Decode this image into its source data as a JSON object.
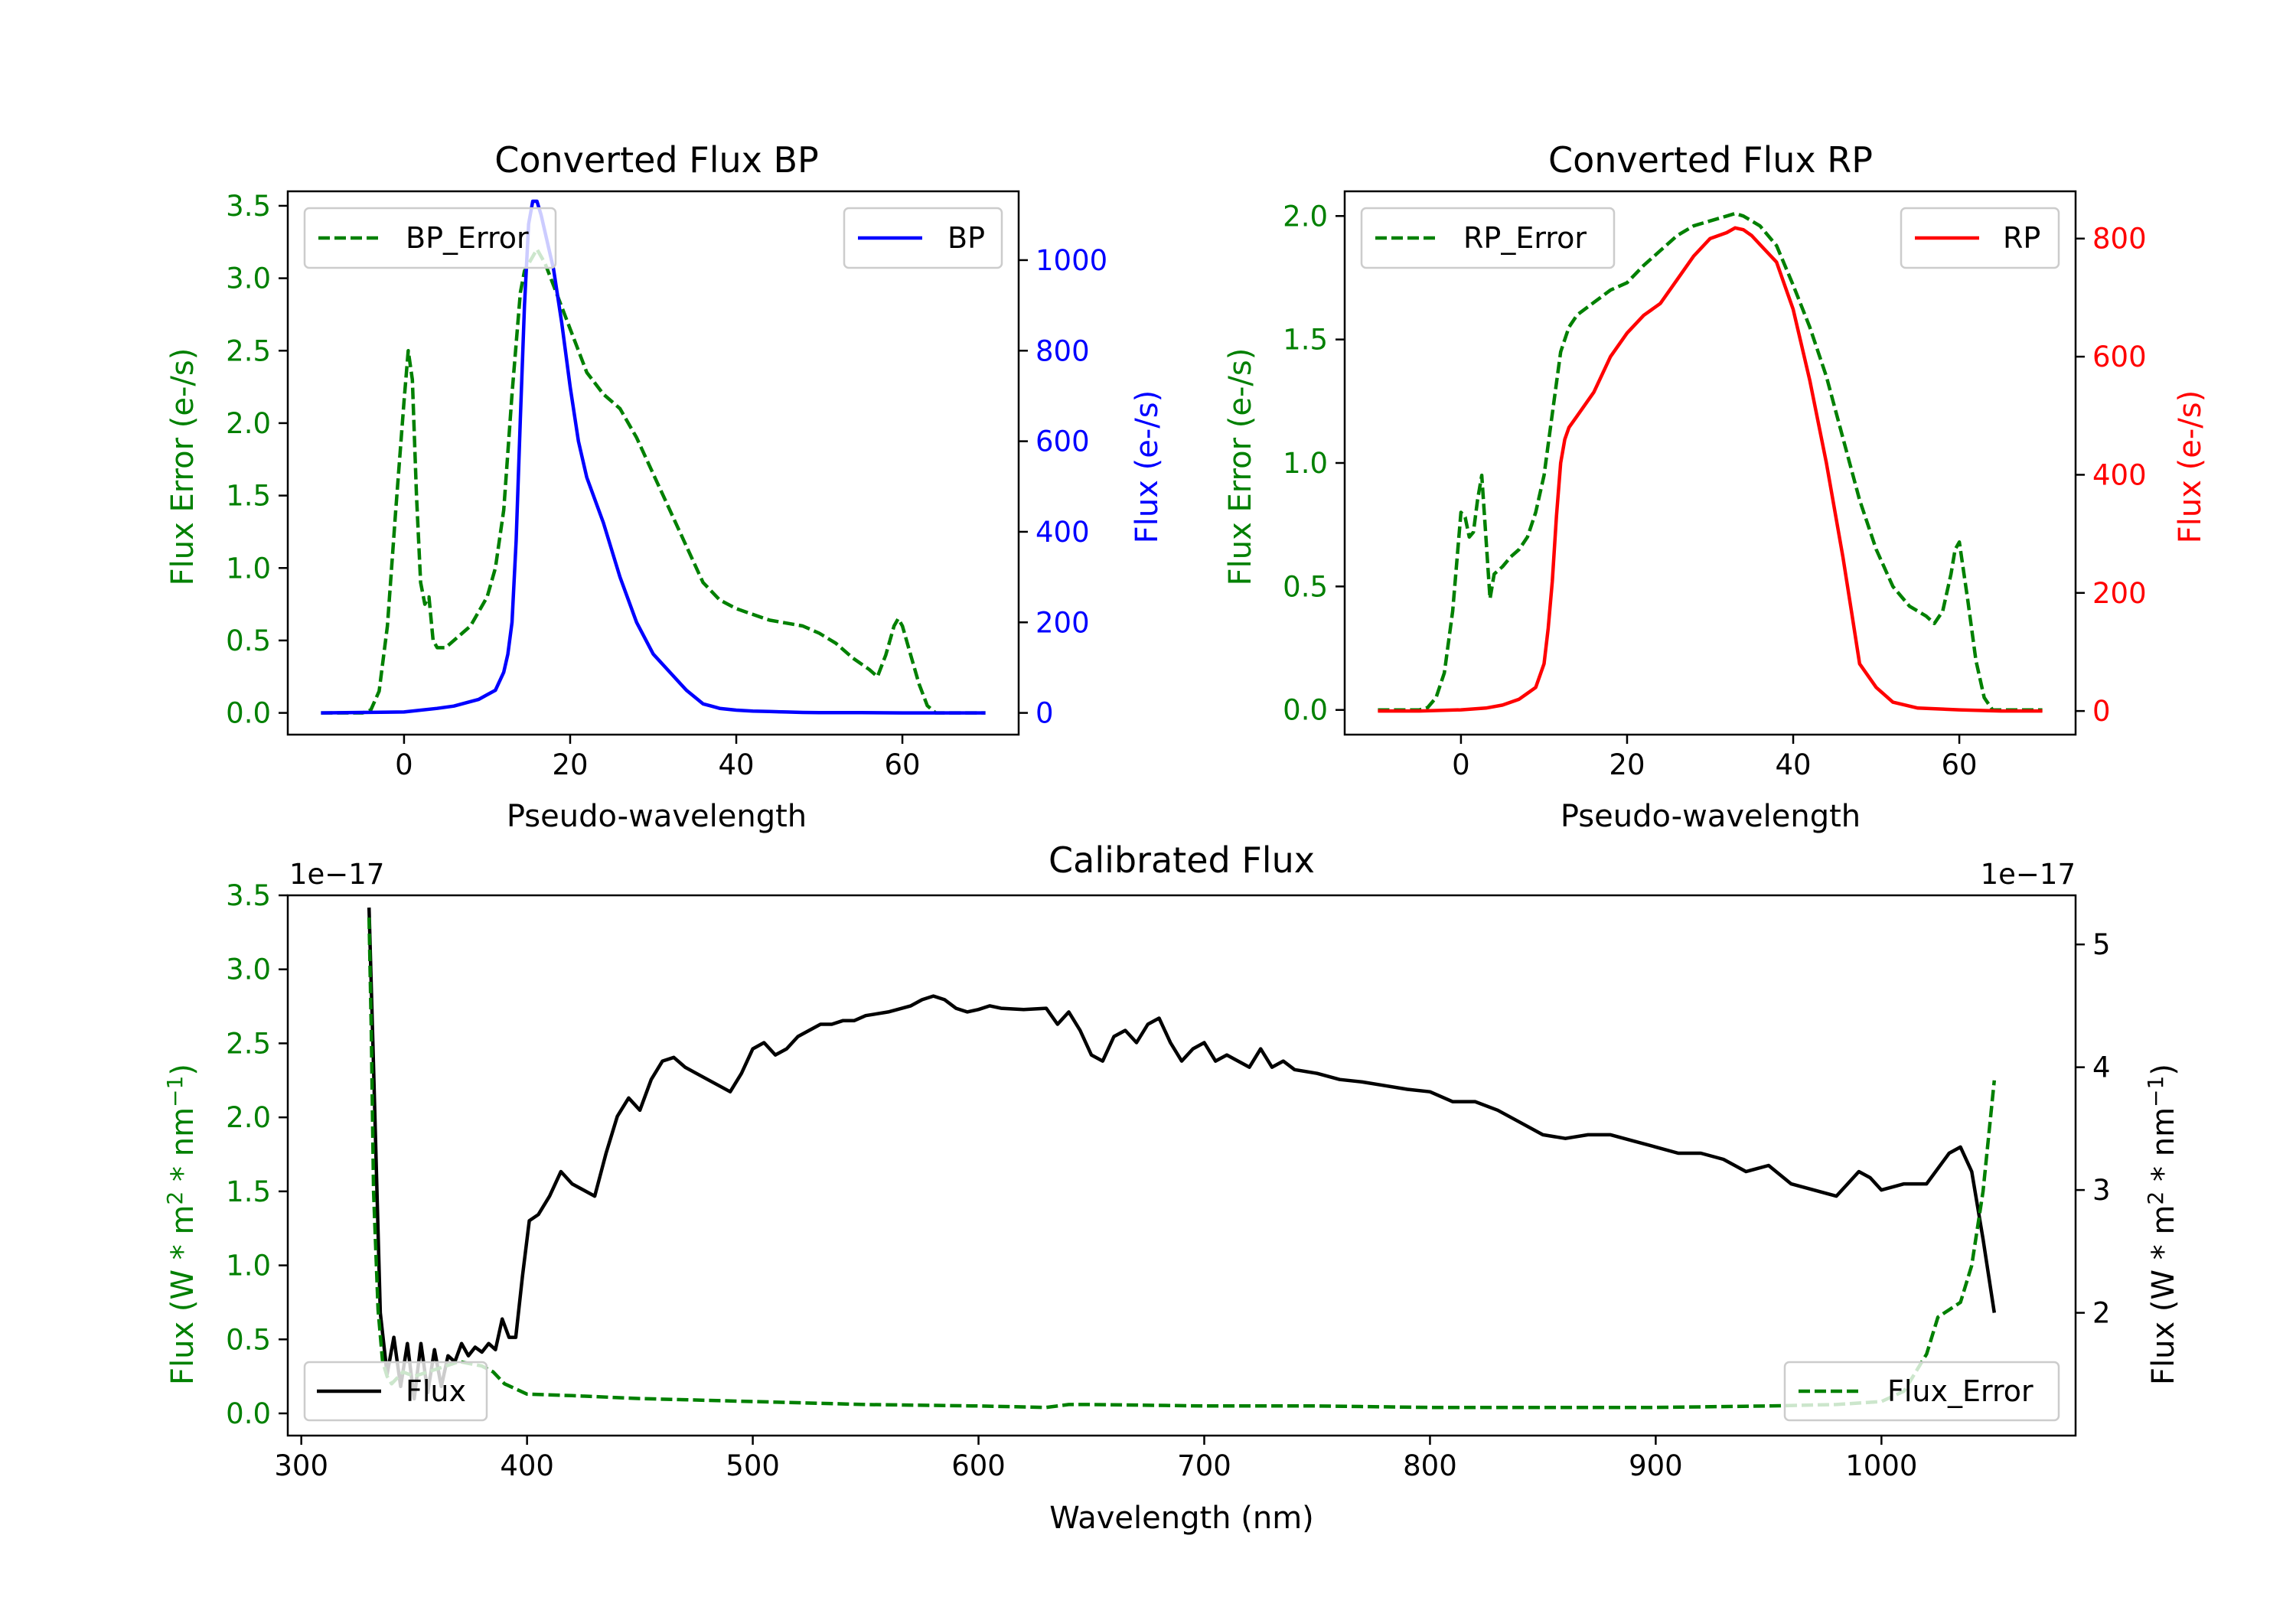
{
  "chart_data": [
    {
      "id": "bp",
      "type": "line",
      "title": "Converted Flux BP",
      "xlabel": "Pseudo-wavelength",
      "ylabel_left": "Flux Error (e-/s)",
      "ylabel_right": "Flux (e-/s)",
      "xlim": [
        -14,
        74
      ],
      "ylim_left": [
        -0.15,
        3.6
      ],
      "ylim_right": [
        -48,
        1152
      ],
      "xticks": [
        0,
        20,
        40,
        60
      ],
      "yticks_left": [
        0.0,
        0.5,
        1.0,
        1.5,
        2.0,
        2.5,
        3.0,
        3.5
      ],
      "yticks_right": [
        0,
        200,
        400,
        600,
        800,
        1000
      ],
      "left_color": "#008000",
      "right_color": "#0000ff",
      "series": [
        {
          "name": "BP_Error",
          "axis": "left",
          "style": "dashed",
          "color": "#008000",
          "x": [
            -10,
            -5,
            -4,
            -3,
            -2,
            -1,
            0,
            0.5,
            1,
            1.5,
            2,
            2.5,
            3,
            3.5,
            4,
            5,
            6,
            7,
            8,
            9,
            10,
            11,
            12,
            13,
            14,
            14.5,
            15,
            16,
            17,
            18,
            20,
            22,
            24,
            26,
            28,
            30,
            32,
            34,
            36,
            38,
            40,
            42,
            44,
            46,
            48,
            50,
            52,
            54,
            56,
            57,
            58,
            59,
            59.5,
            60,
            61,
            62,
            63,
            64,
            66,
            70
          ],
          "values": [
            0,
            0,
            0.02,
            0.15,
            0.6,
            1.4,
            2.15,
            2.5,
            2.3,
            1.5,
            0.9,
            0.75,
            0.8,
            0.5,
            0.45,
            0.45,
            0.5,
            0.55,
            0.6,
            0.7,
            0.8,
            1.0,
            1.4,
            2.2,
            2.9,
            3.05,
            3.1,
            3.2,
            3.1,
            2.95,
            2.65,
            2.35,
            2.2,
            2.1,
            1.9,
            1.65,
            1.4,
            1.15,
            0.9,
            0.78,
            0.72,
            0.68,
            0.64,
            0.62,
            0.6,
            0.55,
            0.48,
            0.38,
            0.3,
            0.25,
            0.4,
            0.6,
            0.65,
            0.6,
            0.4,
            0.2,
            0.05,
            0,
            0,
            0
          ]
        },
        {
          "name": "BP",
          "axis": "right",
          "style": "solid",
          "color": "#0000ff",
          "x": [
            -10,
            -5,
            0,
            4,
            6,
            8,
            9,
            10,
            11,
            12,
            12.5,
            13,
            13.5,
            14,
            14.5,
            15,
            15.5,
            16,
            16.5,
            17,
            18,
            19,
            20,
            21,
            22,
            24,
            26,
            28,
            30,
            32,
            34,
            36,
            37,
            38,
            40,
            42,
            44,
            46,
            48,
            50,
            55,
            60,
            65,
            70
          ],
          "values": [
            0,
            1,
            2,
            10,
            15,
            25,
            30,
            40,
            50,
            90,
            130,
            200,
            380,
            650,
            900,
            1080,
            1130,
            1130,
            1100,
            1060,
            980,
            860,
            720,
            600,
            520,
            420,
            300,
            200,
            130,
            90,
            50,
            20,
            15,
            10,
            6,
            4,
            3,
            2,
            1,
            0.5,
            0.5,
            0,
            0,
            0
          ]
        }
      ],
      "legend": [
        {
          "label": "BP_Error",
          "position": "upper left"
        },
        {
          "label": "BP",
          "position": "upper right"
        }
      ]
    },
    {
      "id": "rp",
      "type": "line",
      "title": "Converted Flux RP",
      "xlabel": "Pseudo-wavelength",
      "ylabel_left": "Flux Error (e-/s)",
      "ylabel_right": "Flux (e-/s)",
      "xlim": [
        -14,
        74
      ],
      "ylim_left": [
        -0.1,
        2.1
      ],
      "ylim_right": [
        -40,
        880
      ],
      "xticks": [
        0,
        20,
        40,
        60
      ],
      "yticks_left": [
        0.0,
        0.5,
        1.0,
        1.5,
        2.0
      ],
      "yticks_right": [
        0,
        200,
        400,
        600,
        800
      ],
      "left_color": "#008000",
      "right_color": "#ff0000",
      "series": [
        {
          "name": "RP_Error",
          "axis": "left",
          "style": "dashed",
          "color": "#008000",
          "x": [
            -10,
            -5,
            -4,
            -3,
            -2,
            -1,
            -0.5,
            0,
            0.5,
            1,
            1.5,
            2,
            2.5,
            3,
            3.5,
            4,
            5,
            6,
            7,
            8,
            9,
            10,
            11,
            12,
            13,
            14,
            16,
            18,
            20,
            22,
            24,
            26,
            28,
            30,
            32,
            33,
            34,
            35,
            36,
            38,
            40,
            42,
            44,
            46,
            48,
            50,
            52,
            54,
            55,
            56,
            57,
            58,
            59,
            59.5,
            60,
            61,
            62,
            63,
            64,
            66,
            70
          ],
          "values": [
            0,
            0,
            0.01,
            0.05,
            0.15,
            0.4,
            0.6,
            0.8,
            0.78,
            0.7,
            0.72,
            0.85,
            0.95,
            0.7,
            0.45,
            0.55,
            0.58,
            0.62,
            0.65,
            0.7,
            0.8,
            0.95,
            1.2,
            1.45,
            1.55,
            1.6,
            1.65,
            1.7,
            1.73,
            1.8,
            1.86,
            1.92,
            1.96,
            1.98,
            2.0,
            2.01,
            2.0,
            1.98,
            1.96,
            1.88,
            1.72,
            1.55,
            1.35,
            1.1,
            0.85,
            0.65,
            0.5,
            0.42,
            0.4,
            0.38,
            0.35,
            0.4,
            0.55,
            0.65,
            0.68,
            0.45,
            0.2,
            0.05,
            0,
            0,
            0
          ]
        },
        {
          "name": "RP",
          "axis": "right",
          "style": "solid",
          "color": "#ff0000",
          "x": [
            -10,
            -5,
            0,
            3,
            5,
            7,
            8,
            9,
            10,
            10.5,
            11,
            11.5,
            12,
            12.5,
            13,
            14,
            16,
            18,
            20,
            22,
            24,
            26,
            28,
            30,
            32,
            33,
            34,
            35,
            36,
            38,
            40,
            42,
            44,
            46,
            47,
            48,
            50,
            52,
            55,
            60,
            65,
            70
          ],
          "values": [
            0,
            0,
            2,
            5,
            10,
            20,
            30,
            40,
            80,
            140,
            220,
            330,
            420,
            460,
            480,
            500,
            540,
            600,
            640,
            670,
            690,
            730,
            770,
            800,
            810,
            818,
            815,
            805,
            790,
            760,
            680,
            560,
            420,
            260,
            170,
            80,
            40,
            15,
            5,
            2,
            0,
            0
          ]
        }
      ],
      "legend": [
        {
          "label": "RP_Error",
          "position": "upper left"
        },
        {
          "label": "RP",
          "position": "upper right"
        }
      ]
    },
    {
      "id": "cal",
      "type": "line",
      "title": "Calibrated Flux",
      "xlabel": "Wavelength (nm)",
      "ylabel_left": "Flux (W * m",
      "ylabel_right": "Flux (W * m",
      "ylabel_mid": " * nm",
      "ylabel_end": ")",
      "ylabel_sup_2": "2",
      "ylabel_sup_minus1": "−1",
      "offset_left": "1e−17",
      "offset_right": "1e−17",
      "xlim": [
        294,
        1086
      ],
      "ylim_left": [
        -0.15,
        3.5
      ],
      "ylim_right": [
        1.0,
        5.4
      ],
      "xticks": [
        300,
        400,
        500,
        600,
        700,
        800,
        900,
        1000
      ],
      "yticks_left": [
        0.0,
        0.5,
        1.0,
        1.5,
        2.0,
        2.5,
        3.0,
        3.5
      ],
      "yticks_right": [
        2,
        3,
        4,
        5
      ],
      "left_color": "#008000",
      "right_color": "#000000",
      "series": [
        {
          "name": "Flux",
          "axis": "right",
          "style": "solid",
          "color": "#000000",
          "x": [
            330,
            332,
            335,
            338,
            341,
            344,
            347,
            350,
            353,
            356,
            359,
            362,
            365,
            368,
            371,
            374,
            377,
            380,
            383,
            386,
            389,
            392,
            395,
            398,
            401,
            405,
            410,
            415,
            420,
            425,
            430,
            435,
            440,
            445,
            450,
            455,
            460,
            465,
            470,
            475,
            480,
            485,
            490,
            495,
            500,
            505,
            510,
            515,
            520,
            525,
            530,
            535,
            540,
            545,
            550,
            560,
            570,
            575,
            580,
            585,
            590,
            595,
            600,
            605,
            610,
            620,
            630,
            635,
            640,
            645,
            650,
            655,
            660,
            665,
            670,
            675,
            680,
            685,
            690,
            695,
            700,
            705,
            710,
            715,
            720,
            725,
            730,
            735,
            740,
            750,
            760,
            770,
            780,
            790,
            800,
            810,
            820,
            830,
            840,
            850,
            860,
            870,
            880,
            890,
            900,
            910,
            920,
            930,
            940,
            950,
            960,
            970,
            980,
            985,
            990,
            995,
            1000,
            1010,
            1020,
            1030,
            1035,
            1040,
            1045,
            1050
          ],
          "values": [
            5.3,
            4.0,
            2.0,
            1.5,
            1.8,
            1.4,
            1.75,
            1.3,
            1.75,
            1.35,
            1.7,
            1.4,
            1.65,
            1.6,
            1.75,
            1.65,
            1.72,
            1.68,
            1.75,
            1.7,
            1.95,
            1.8,
            1.8,
            2.3,
            2.75,
            2.8,
            2.95,
            3.15,
            3.05,
            3.0,
            2.95,
            3.3,
            3.6,
            3.75,
            3.65,
            3.9,
            4.05,
            4.08,
            4.0,
            3.95,
            3.9,
            3.85,
            3.8,
            3.95,
            4.15,
            4.2,
            4.1,
            4.15,
            4.25,
            4.3,
            4.35,
            4.35,
            4.38,
            4.38,
            4.42,
            4.45,
            4.5,
            4.55,
            4.58,
            4.55,
            4.48,
            4.45,
            4.47,
            4.5,
            4.48,
            4.47,
            4.48,
            4.35,
            4.45,
            4.3,
            4.1,
            4.05,
            4.25,
            4.3,
            4.2,
            4.35,
            4.4,
            4.2,
            4.05,
            4.15,
            4.2,
            4.05,
            4.1,
            4.05,
            4.0,
            4.15,
            4.0,
            4.05,
            3.98,
            3.95,
            3.9,
            3.88,
            3.85,
            3.82,
            3.8,
            3.72,
            3.72,
            3.65,
            3.55,
            3.45,
            3.42,
            3.45,
            3.45,
            3.4,
            3.35,
            3.3,
            3.3,
            3.25,
            3.15,
            3.2,
            3.05,
            3.0,
            2.95,
            3.05,
            3.15,
            3.1,
            3.0,
            3.05,
            3.05,
            3.3,
            3.35,
            3.15,
            2.6,
            2.0
          ]
        },
        {
          "name": "Flux_Error",
          "axis": "left",
          "style": "dashed",
          "color": "#008000",
          "x": [
            330,
            331,
            332,
            334,
            336,
            338,
            340,
            345,
            350,
            360,
            370,
            380,
            385,
            390,
            400,
            420,
            450,
            500,
            550,
            600,
            630,
            640,
            650,
            700,
            750,
            800,
            850,
            900,
            950,
            980,
            1000,
            1010,
            1020,
            1025,
            1030,
            1035,
            1040,
            1045,
            1050
          ],
          "values": [
            3.35,
            2.6,
            1.5,
            0.7,
            0.35,
            0.25,
            0.2,
            0.28,
            0.25,
            0.3,
            0.35,
            0.32,
            0.28,
            0.2,
            0.13,
            0.12,
            0.1,
            0.08,
            0.06,
            0.05,
            0.04,
            0.06,
            0.06,
            0.05,
            0.05,
            0.04,
            0.04,
            0.04,
            0.05,
            0.06,
            0.08,
            0.15,
            0.4,
            0.65,
            0.7,
            0.75,
            1.0,
            1.5,
            2.25
          ]
        }
      ],
      "legend": [
        {
          "label": "Flux",
          "position": "lower left"
        },
        {
          "label": "Flux_Error",
          "position": "lower right"
        }
      ]
    }
  ]
}
